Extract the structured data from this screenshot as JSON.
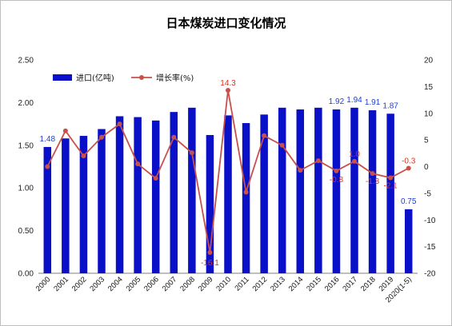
{
  "chart_data": {
    "type": "bar",
    "title": "日本煤炭进口变化情况",
    "categories": [
      "2000",
      "2001",
      "2002",
      "2003",
      "2004",
      "2005",
      "2006",
      "2007",
      "2008",
      "2009",
      "2010",
      "2011",
      "2012",
      "2013",
      "2014",
      "2015",
      "2016",
      "2017",
      "2018",
      "2019",
      "2020(1-5)"
    ],
    "series": [
      {
        "name": "进口(亿吨)",
        "type": "bar",
        "axis": "left",
        "color": "#0a10c8",
        "values": [
          1.48,
          1.58,
          1.61,
          1.69,
          1.84,
          1.83,
          1.79,
          1.89,
          1.94,
          1.62,
          1.85,
          1.76,
          1.86,
          1.94,
          1.92,
          1.94,
          1.92,
          1.94,
          1.91,
          1.87,
          0.75
        ],
        "labels": [
          "1.48",
          "",
          "",
          "",
          "",
          "",
          "",
          "",
          "",
          "",
          "",
          "",
          "",
          "",
          "",
          "",
          "1.92",
          "1.94",
          "1.91",
          "1.87",
          "0.75"
        ]
      },
      {
        "name": "增长率(%)",
        "type": "line",
        "axis": "right",
        "color": "#c8504a",
        "values": [
          0.0,
          6.7,
          2.0,
          5.5,
          8.0,
          0.5,
          -2.2,
          5.5,
          2.6,
          -16.1,
          14.3,
          -4.8,
          5.8,
          4.0,
          -0.7,
          1.1,
          -0.8,
          1.0,
          -1.3,
          -2.1,
          -0.3
        ],
        "labels": [
          "",
          "",
          "",
          "",
          "",
          "",
          "",
          "",
          "",
          "-16.1",
          "14.3",
          "",
          "",
          "",
          "",
          "",
          "-0.8",
          "1.0",
          "-1.3",
          "-2.1",
          "-0.3"
        ]
      }
    ],
    "y_left": {
      "min": 0,
      "max": 2.5,
      "ticks": [
        "0.00",
        "0.50",
        "1.00",
        "1.50",
        "2.00",
        "2.50"
      ]
    },
    "y_right": {
      "min": -20,
      "max": 20,
      "ticks": [
        "-20",
        "-15",
        "-10",
        "-5",
        "0",
        "5",
        "10",
        "15",
        "20"
      ]
    },
    "legend_position": "top-left",
    "grid": false
  }
}
